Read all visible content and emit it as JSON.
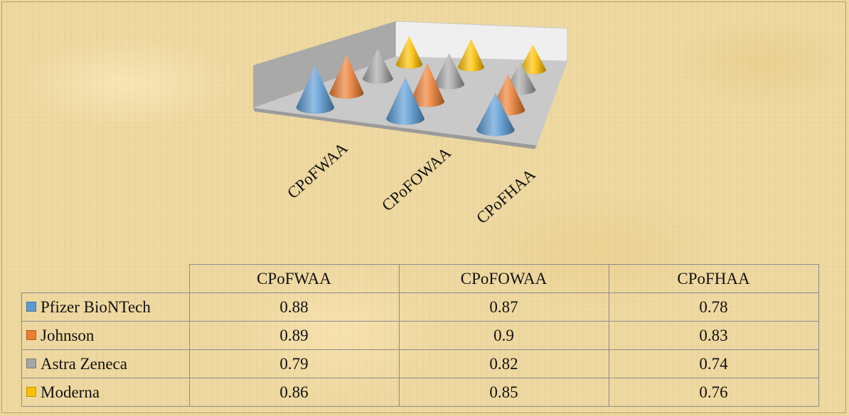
{
  "chart_data": {
    "type": "3d-cone",
    "categories": [
      "CPoFWAA",
      "CPoFOWAA",
      "CPoFHAA"
    ],
    "series": [
      {
        "name": "Pfizer BioNTech",
        "color": "#5b9bd5",
        "values": [
          0.88,
          0.87,
          0.78
        ],
        "labels": [
          "0.88",
          "0.87",
          "0.78"
        ]
      },
      {
        "name": "Johnson",
        "color": "#ed7d31",
        "values": [
          0.89,
          0.9,
          0.83
        ],
        "labels": [
          "0.89",
          "0.9",
          "0.83"
        ]
      },
      {
        "name": "Astra Zeneca",
        "color": "#a5a5a5",
        "values": [
          0.79,
          0.82,
          0.74
        ],
        "labels": [
          "0.79",
          "0.82",
          "0.74"
        ]
      },
      {
        "name": "Moderna",
        "color": "#ffc000",
        "values": [
          0.86,
          0.85,
          0.76
        ],
        "labels": [
          "0.86",
          "0.85",
          "0.76"
        ]
      }
    ],
    "data_table": true,
    "legend": "data-table-keys"
  }
}
